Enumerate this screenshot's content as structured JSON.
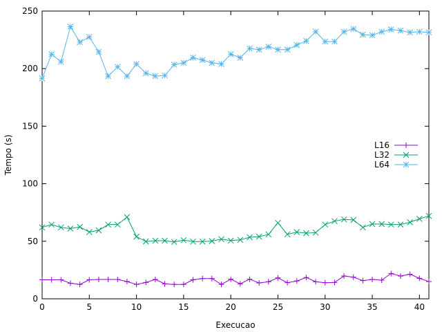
{
  "chart_data": {
    "type": "line",
    "title": "",
    "xlabel": "Execucao",
    "ylabel": "Tempo (s)",
    "xlim": [
      0,
      41
    ],
    "ylim": [
      0,
      250
    ],
    "xticks": [
      0,
      5,
      10,
      15,
      20,
      25,
      30,
      35,
      40
    ],
    "yticks": [
      0,
      50,
      100,
      150,
      200,
      250
    ],
    "grid": false,
    "legend_position": "right",
    "x": [
      0,
      1,
      2,
      3,
      4,
      5,
      6,
      7,
      8,
      9,
      10,
      11,
      12,
      13,
      14,
      15,
      16,
      17,
      18,
      19,
      20,
      21,
      22,
      23,
      24,
      25,
      26,
      27,
      28,
      29,
      30,
      31,
      32,
      33,
      34,
      35,
      36,
      37,
      38,
      39,
      40,
      41
    ],
    "series": [
      {
        "name": "L16",
        "color": "#9400d3",
        "marker": "plus",
        "values": [
          16.5,
          16.5,
          16.5,
          13.5,
          12.5,
          16.5,
          16.8,
          16.8,
          16.8,
          15,
          12.5,
          14.2,
          16.8,
          13,
          12.5,
          12.5,
          16.5,
          17.6,
          17.6,
          12.5,
          17,
          13,
          17,
          13.8,
          14.8,
          18.2,
          14,
          15.5,
          18.5,
          14.8,
          14,
          14.2,
          19.8,
          18.8,
          15.8,
          16.8,
          16.2,
          22,
          19.8,
          21.3,
          17.8,
          15
        ]
      },
      {
        "name": "L32",
        "color": "#009e73",
        "marker": "x",
        "values": [
          62,
          64.5,
          62,
          61,
          62.5,
          58,
          59.5,
          64.5,
          64.5,
          71,
          54,
          49.8,
          50.5,
          50.5,
          49.4,
          50.9,
          49.7,
          49.7,
          50.2,
          51.8,
          50.6,
          51.2,
          53.5,
          54,
          56,
          66,
          56,
          58,
          57,
          57.5,
          64.5,
          67.5,
          69,
          68.5,
          62,
          65,
          65,
          64.5,
          64.5,
          66.5,
          69.5,
          72
        ]
      },
      {
        "name": "L64",
        "color": "#56b4e9",
        "marker": "star",
        "values": [
          191.5,
          212.5,
          206,
          236.5,
          223,
          227.5,
          214.5,
          193.5,
          201.5,
          193.5,
          204,
          196,
          193.5,
          194,
          203.5,
          205,
          209.5,
          207.5,
          205,
          204,
          212.5,
          209.5,
          217.5,
          216.5,
          219,
          216.5,
          216.5,
          220.5,
          224,
          232,
          223.5,
          223.5,
          232,
          234.5,
          229.5,
          229,
          232,
          234,
          233,
          231.5,
          232,
          231.5
        ]
      }
    ]
  }
}
